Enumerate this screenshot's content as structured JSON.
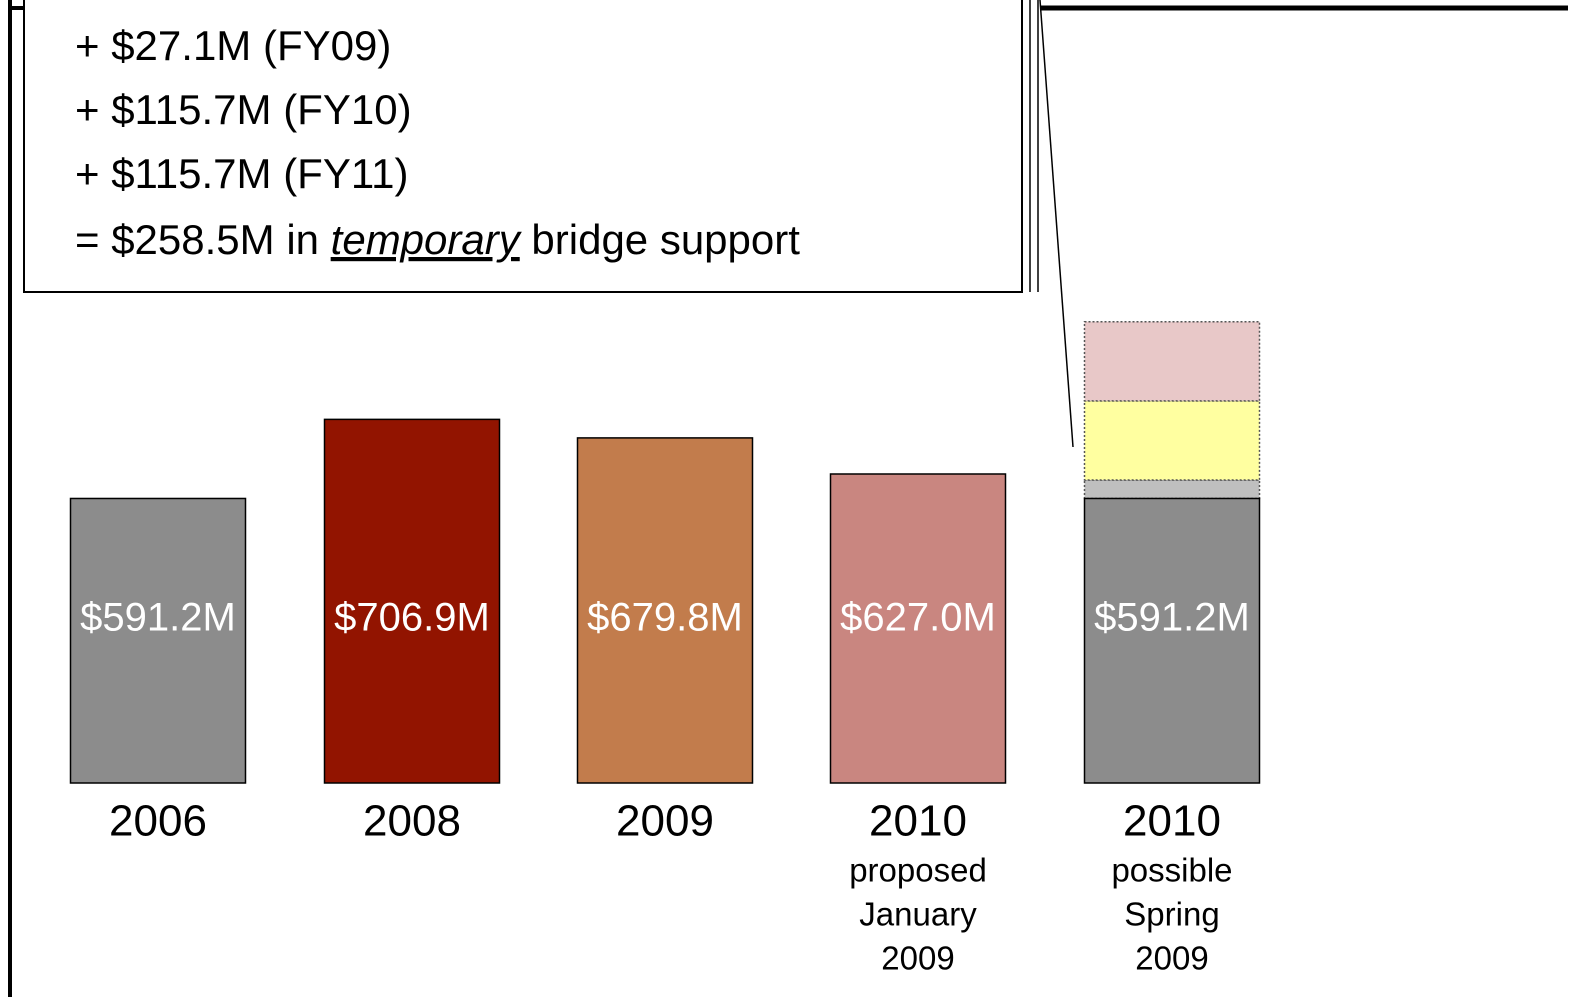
{
  "chart_data": {
    "type": "bar",
    "annotation_lines": [
      "+ $27.1M (FY09)",
      "+ $115.7M (FY10)",
      "+ $115.7M (FY11)"
    ],
    "annotation_total": [
      "= $258.5M in ",
      "temporary",
      " bridge support"
    ],
    "categories": [
      "2006",
      "2008",
      "2009",
      "2010",
      "2010"
    ],
    "category_notes": [
      [],
      [],
      [],
      [
        "proposed",
        "January",
        "2009"
      ],
      [
        "possible",
        "Spring",
        "2009"
      ]
    ],
    "values": [
      591.2,
      706.9,
      679.8,
      627.0,
      591.2
    ],
    "value_labels": [
      "$591.2M",
      "$706.9M",
      "$679.8M",
      "$627.0M",
      "$591.2M"
    ],
    "colors": [
      "#8c8c8c",
      "#921400",
      "#c27c4c",
      "#c98680",
      "#8c8c8c"
    ],
    "stacked_segments": [
      {
        "value": 27.1,
        "color": "#bfbfbf"
      },
      {
        "value": 115.7,
        "color": "#ffffa0"
      },
      {
        "value": 115.7,
        "color": "#e8c8c8"
      }
    ],
    "ylim": [
      175,
      1000
    ]
  }
}
